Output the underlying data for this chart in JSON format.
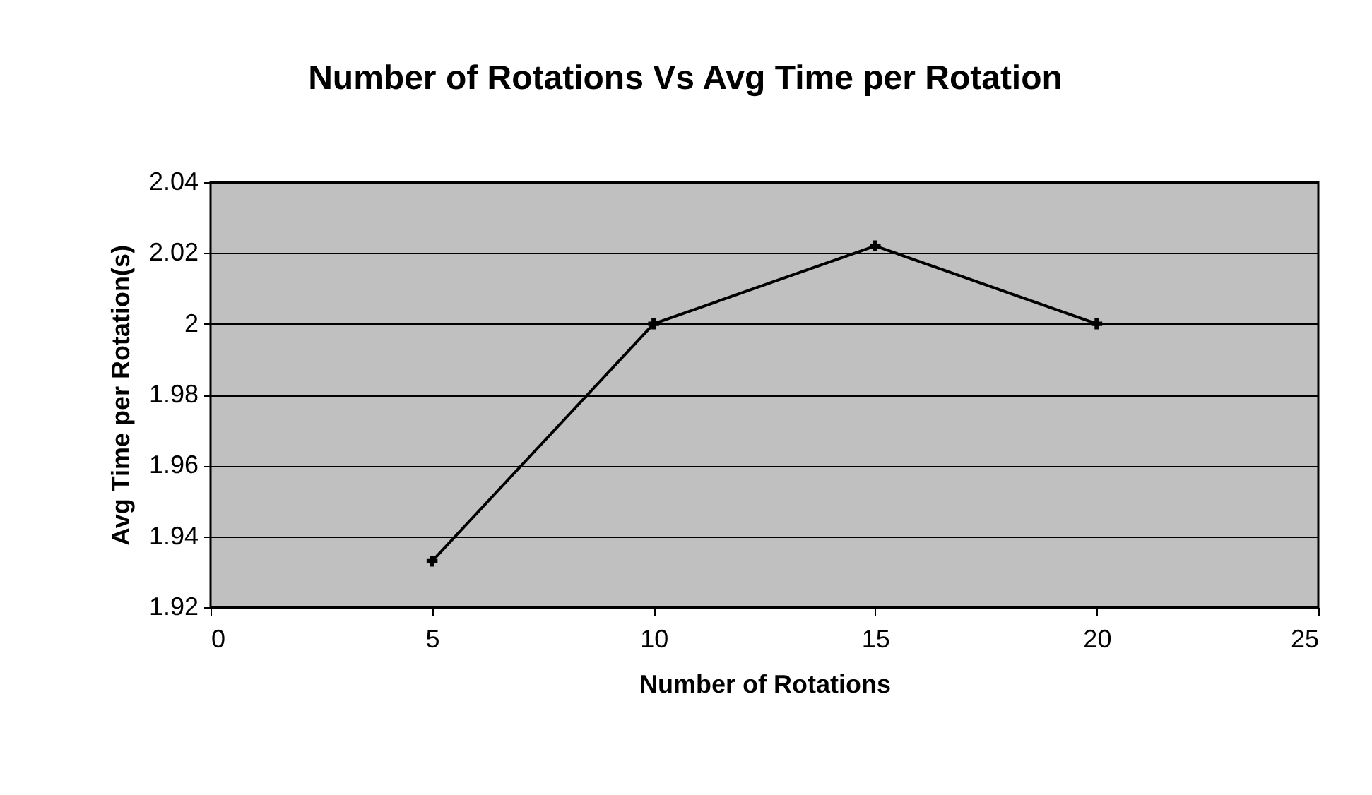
{
  "chart_data": {
    "type": "line",
    "title": "Number of Rotations Vs Avg Time per Rotation",
    "xlabel": "Number of Rotations",
    "ylabel": "Avg Time per Rotation(s)",
    "x": [
      5,
      10,
      15,
      20
    ],
    "series": [
      {
        "color": "#000000",
        "values": [
          1.933,
          2.0,
          2.022,
          2.0
        ]
      }
    ],
    "xlim": [
      0,
      25
    ],
    "xticks": [
      0,
      5,
      10,
      15,
      20,
      25
    ],
    "ylim": [
      1.92,
      2.04
    ],
    "yticks": [
      1.92,
      1.94,
      1.96,
      1.98,
      2,
      2.02,
      2.04
    ],
    "grid": "y",
    "marker": "cross",
    "line_style": "solid"
  }
}
